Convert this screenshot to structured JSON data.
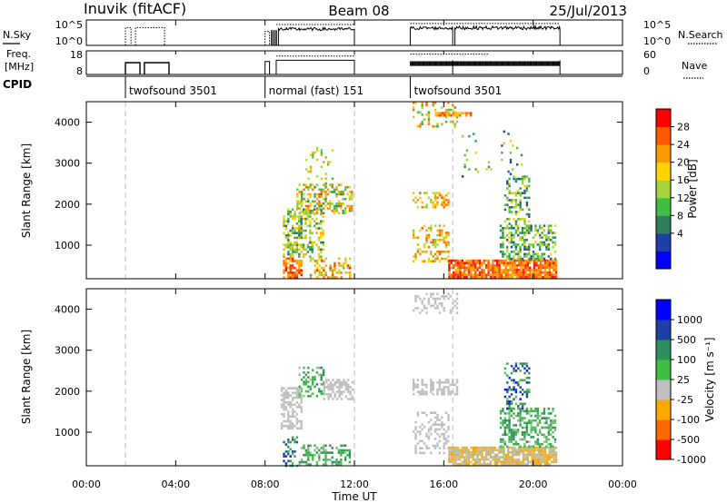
{
  "header": {
    "title": "Inuvik (fitACF)",
    "beam": "Beam 08",
    "date": "25/Jul/2013"
  },
  "strips": {
    "nsky_label": "N.Sky",
    "nsky_ticks": [
      "10^5",
      "10^0"
    ],
    "nsearch_label": "N.Search",
    "nsearch_ticks": [
      "10^5",
      "10^0"
    ],
    "freq_label_1": "Freq.",
    "freq_label_2": "[MHz]",
    "freq_ticks": [
      "18",
      "8"
    ],
    "nave_label": "Nave",
    "nave_ticks": [
      "60",
      "0"
    ],
    "cpid_label": "CPID",
    "cpid_segments": [
      {
        "label": "twofsound 3501",
        "start": 1.75,
        "end": 8.0
      },
      {
        "label": "normal (fast) 151",
        "start": 8.0,
        "end": 14.5
      },
      {
        "label": "twofsound 3501",
        "start": 14.5,
        "end": 24.0
      }
    ]
  },
  "panels": {
    "ylabel": "Slant Range [km]",
    "xlabel": "Time UT",
    "power_cbar_label": "Power [dB]",
    "power_cbar_ticks": [
      "28",
      "24",
      "20",
      "16",
      "12",
      "8",
      "4"
    ],
    "velocity_cbar_label": "Velocity [m s⁻¹]",
    "velocity_cbar_ticks": [
      "1000",
      "500",
      "100",
      "25",
      "-25",
      "-100",
      "-500",
      "-1000"
    ]
  },
  "colors": {
    "power_scale": [
      "#0000ff",
      "#1f3fa8",
      "#2f7f5f",
      "#3fbf3f",
      "#a6d23c",
      "#ffd400",
      "#ff9a00",
      "#ff5a00",
      "#ff0000"
    ],
    "velocity_scale": [
      "#ff0000",
      "#ff6a00",
      "#ffaa00",
      "#bfbfbf",
      "#3fbf3f",
      "#2f8f5f",
      "#1f3fa8",
      "#0000ff"
    ],
    "ground_scatter": "#bfbfbf",
    "dashed_time_markers": "#c8c8c8"
  },
  "chart_data": {
    "type": "heatmap",
    "title": "Inuvik (fitACF)",
    "xlabel": "Time UT",
    "ylabel": "Slant Range [km]",
    "xlim": [
      0,
      24
    ],
    "ylim": [
      180,
      4500
    ],
    "x_tick_labels": [
      "00:00",
      "04:00",
      "08:00",
      "12:00",
      "16:00",
      "20:00",
      "00:00"
    ],
    "x_ticks": [
      0,
      4,
      8,
      12,
      16,
      20,
      24
    ],
    "y_ticks": [
      1000,
      2000,
      3000,
      4000
    ],
    "y_tick_labels": [
      "1000",
      "2000",
      "3000",
      "4000"
    ],
    "dashed_markers_hours": [
      1.75,
      12.0,
      16.4
    ],
    "power_panel": {
      "colorbar_range_dB": [
        0,
        32
      ],
      "patches": [
        {
          "t": [
            8.8,
            9.6
          ],
          "r": [
            200,
            700
          ],
          "dB": [
            20,
            32
          ],
          "density": 0.7
        },
        {
          "t": [
            8.8,
            10.6
          ],
          "r": [
            700,
            1900
          ],
          "dB": [
            6,
            24
          ],
          "density": 0.45
        },
        {
          "t": [
            9.4,
            11.9
          ],
          "r": [
            1800,
            2500
          ],
          "dB": [
            8,
            28
          ],
          "density": 0.5
        },
        {
          "t": [
            10.0,
            11.8
          ],
          "r": [
            200,
            700
          ],
          "dB": [
            14,
            30
          ],
          "density": 0.45
        },
        {
          "t": [
            9.8,
            11.0
          ],
          "r": [
            2500,
            3400
          ],
          "dB": [
            10,
            24
          ],
          "density": 0.12
        },
        {
          "t": [
            14.6,
            16.6
          ],
          "r": [
            3900,
            4500
          ],
          "dB": [
            10,
            28
          ],
          "density": 0.25
        },
        {
          "t": [
            15.6,
            17.2
          ],
          "r": [
            4150,
            4250
          ],
          "dB": [
            20,
            30
          ],
          "density": 0.8
        },
        {
          "t": [
            14.6,
            16.2
          ],
          "r": [
            1900,
            2300
          ],
          "dB": [
            14,
            28
          ],
          "density": 0.45
        },
        {
          "t": [
            14.6,
            16.2
          ],
          "r": [
            600,
            1500
          ],
          "dB": [
            14,
            28
          ],
          "density": 0.3
        },
        {
          "t": [
            16.2,
            21.0
          ],
          "r": [
            200,
            650
          ],
          "dB": [
            22,
            32
          ],
          "density": 0.85
        },
        {
          "t": [
            18.5,
            21.0
          ],
          "r": [
            650,
            1500
          ],
          "dB": [
            4,
            20
          ],
          "density": 0.5
        },
        {
          "t": [
            18.7,
            19.8
          ],
          "r": [
            1500,
            2700
          ],
          "dB": [
            4,
            20
          ],
          "density": 0.4
        },
        {
          "t": [
            16.8,
            19.5
          ],
          "r": [
            2700,
            3800
          ],
          "dB": [
            4,
            20
          ],
          "density": 0.05
        }
      ]
    },
    "velocity_panel": {
      "colorbar_range_ms": [
        -1000,
        1000
      ],
      "patches": [
        {
          "t": [
            8.7,
            9.6
          ],
          "r": [
            1100,
            2100
          ],
          "v": "ground",
          "density": 0.55
        },
        {
          "t": [
            9.5,
            10.6
          ],
          "r": [
            1900,
            2600
          ],
          "v": [
            -100,
            500
          ],
          "density": 0.35
        },
        {
          "t": [
            10.6,
            11.9
          ],
          "r": [
            1800,
            2300
          ],
          "v": "ground",
          "density": 0.6
        },
        {
          "t": [
            8.8,
            9.4
          ],
          "r": [
            200,
            900
          ],
          "v": [
            100,
            1000
          ],
          "density": 0.45
        },
        {
          "t": [
            9.5,
            11.8
          ],
          "r": [
            200,
            700
          ],
          "v": [
            -100,
            500
          ],
          "density": 0.45
        },
        {
          "t": [
            14.6,
            16.6
          ],
          "r": [
            1900,
            2300
          ],
          "v": "ground",
          "density": 0.5
        },
        {
          "t": [
            14.6,
            16.6
          ],
          "r": [
            3900,
            4400
          ],
          "v": "ground",
          "density": 0.3
        },
        {
          "t": [
            14.6,
            16.2
          ],
          "r": [
            500,
            1500
          ],
          "v": "ground",
          "density": 0.35
        },
        {
          "t": [
            16.2,
            21.0
          ],
          "r": [
            200,
            650
          ],
          "v": [
            -500,
            -25
          ],
          "density": 0.85
        },
        {
          "t": [
            18.5,
            21.0
          ],
          "r": [
            650,
            1600
          ],
          "v": [
            -100,
            500
          ],
          "density": 0.5
        },
        {
          "t": [
            18.7,
            19.8
          ],
          "r": [
            1600,
            2700
          ],
          "v": [
            25,
            1000
          ],
          "density": 0.35
        }
      ]
    }
  }
}
